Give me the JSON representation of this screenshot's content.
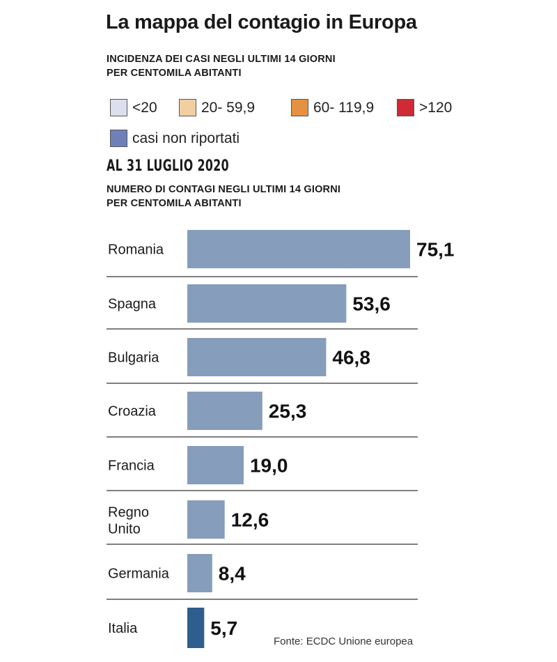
{
  "header": {
    "title": "La mappa del contagio in Europa",
    "map_subtitle_line1": "INCIDENZA DEI CASI NEGLI ULTIMI 14 GIORNI",
    "map_subtitle_line2": "PER CENTOMILA ABITANTI",
    "date": "AL 31 LUGLIO 2020",
    "chart_subtitle_line1": "NUMERO DI CONTAGI  NEGLI ULTIMI 14 GIORNI",
    "chart_subtitle_line2": "PER CENTOMILA ABITANTI"
  },
  "legend": [
    {
      "label": "<20",
      "color": "#dcdfee"
    },
    {
      "label": "20- 59,9",
      "color": "#f2cfa2"
    },
    {
      "label": "60- 119,9",
      "color": "#e5913f"
    },
    {
      "label": ">120",
      "color": "#cf2a35"
    },
    {
      "label": "casi non riportati",
      "color": "#6f80b8"
    }
  ],
  "source": "Fonte: ECDC Unione europea",
  "chart_data": {
    "type": "bar",
    "orientation": "horizontal",
    "title": "NUMERO DI CONTAGI NEGLI ULTIMI 14 GIORNI PER CENTOMILA ABITANTI",
    "categories": [
      "Romania",
      "Spagna",
      "Bulgaria",
      "Croazia",
      "Francia",
      "Regno Unito",
      "Germania",
      "Italia"
    ],
    "values": [
      75.1,
      53.6,
      46.8,
      25.3,
      19.0,
      12.6,
      8.4,
      5.7
    ],
    "value_labels": [
      "75,1",
      "53,6",
      "46,8",
      "25,3",
      "19,0",
      "12,6",
      "8,4",
      "5,7"
    ],
    "highlight": "Italia",
    "colors": {
      "default": "#869dbb",
      "highlight": "#2e5e8e"
    },
    "xlim": [
      0,
      75.1
    ],
    "grid": false,
    "xlabel": "",
    "ylabel": ""
  }
}
